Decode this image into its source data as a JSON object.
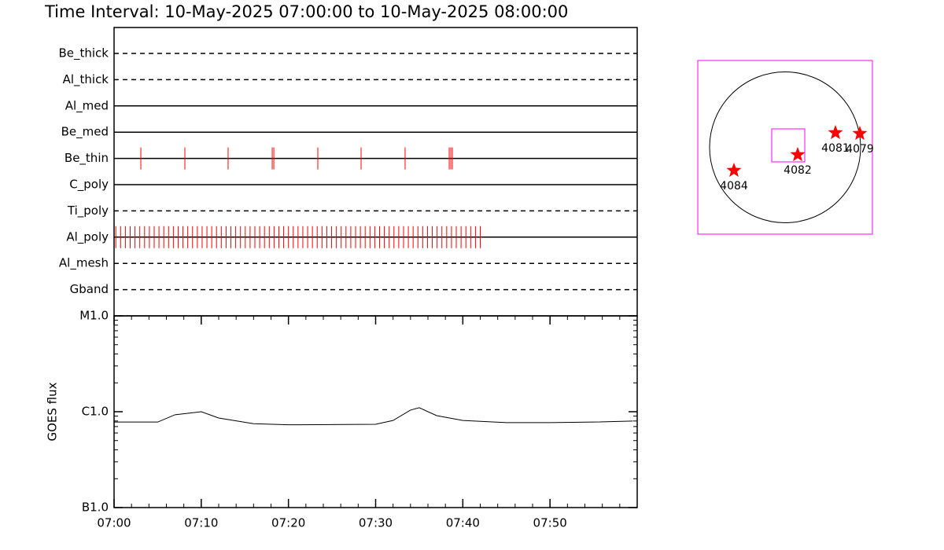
{
  "title": "Time Interval: 10-May-2025 07:00:00 to 10-May-2025 08:00:00",
  "chart_data": [
    {
      "type": "timeline",
      "xlim": [
        0,
        60
      ],
      "color": "#ff0000",
      "rows": [
        {
          "name": "Be_thick",
          "style": "dashed",
          "exposures": []
        },
        {
          "name": "Al_thick",
          "style": "dashed",
          "exposures": []
        },
        {
          "name": "Al_med",
          "style": "solid",
          "exposures": []
        },
        {
          "name": "Be_med",
          "style": "solid",
          "exposures": []
        },
        {
          "name": "Be_thin",
          "style": "solid",
          "exposures": [
            3.07,
            8.12,
            13.08,
            18.14,
            18.32,
            23.37,
            28.33,
            33.38,
            38.44,
            38.62,
            38.8
          ]
        },
        {
          "name": "C_poly",
          "style": "solid",
          "exposures": []
        },
        {
          "name": "Ti_poly",
          "style": "dashed",
          "exposures": []
        },
        {
          "name": "Al_poly",
          "style": "solid",
          "exposures": [
            0.2,
            0.75,
            1.3,
            1.85,
            2.4,
            2.95,
            3.5,
            4.05,
            4.6,
            5.15,
            5.7,
            6.25,
            6.8,
            7.35,
            7.9,
            8.45,
            9,
            9.55,
            10.1,
            10.65,
            11.2,
            11.75,
            12.3,
            12.85,
            13.4,
            13.95,
            14.5,
            15.05,
            15.6,
            16.15,
            16.7,
            17.25,
            17.8,
            18.35,
            18.9,
            19.45,
            20,
            20.55,
            21.1,
            21.65,
            22.2,
            22.75,
            23.3,
            23.85,
            24.4,
            24.95,
            25.5,
            26.05,
            26.6,
            27.15,
            27.7,
            28.25,
            28.8,
            29.35,
            29.9,
            30.45,
            31,
            31.55,
            32.1,
            32.65,
            33.2,
            33.75,
            34.3,
            34.85,
            35.4,
            35.95,
            36.5,
            37.05,
            37.6,
            38.15,
            38.7,
            39.25,
            39.8,
            40.35,
            40.9,
            41.45,
            42
          ]
        },
        {
          "name": "Al_mesh",
          "style": "dashed",
          "exposures": []
        },
        {
          "name": "Gband",
          "style": "dashed",
          "exposures": []
        }
      ]
    },
    {
      "type": "line",
      "y_label": "GOES flux",
      "log_y": true,
      "color": "#000000",
      "xlim": [
        0,
        60
      ],
      "minor_step": 2,
      "xticks": [
        {
          "value": 0,
          "label": "07:00"
        },
        {
          "value": 10,
          "label": "07:10"
        },
        {
          "value": 20,
          "label": "07:20"
        },
        {
          "value": 30,
          "label": "07:30"
        },
        {
          "value": 40,
          "label": "07:40"
        },
        {
          "value": 50,
          "label": "07:50"
        }
      ],
      "ylim": [
        1e-07,
        1e-05
      ],
      "yticks": [
        {
          "value": 1e-05,
          "label": "M1.0"
        },
        {
          "value": 1e-06,
          "label": "C1.0"
        },
        {
          "value": 1e-07,
          "label": "B1.0"
        }
      ],
      "x": [
        0,
        5,
        7,
        10,
        12,
        16,
        20,
        30,
        32,
        34,
        35,
        37,
        40,
        45,
        50,
        55,
        59.5
      ],
      "values": [
        7.8e-07,
        7.8e-07,
        9.3e-07,
        1e-06,
        8.6e-07,
        7.5e-07,
        7.3e-07,
        7.4e-07,
        8.1e-07,
        1.04e-06,
        1.1e-06,
        9.1e-07,
        8.1e-07,
        7.7e-07,
        7.7e-07,
        7.8e-07,
        8e-07
      ]
    },
    {
      "type": "map",
      "xlim": [
        -1110,
        1110
      ],
      "ylim": [
        -1105,
        1105
      ],
      "sun_radius": 960,
      "frame_color": "#ff00ff",
      "marker_color": "#ff0000",
      "fov": {
        "x": 40,
        "y": 25,
        "width": 420,
        "height": 420
      },
      "regions": [
        {
          "name": "4084",
          "x": -650,
          "y": -295
        },
        {
          "name": "4082",
          "x": 160,
          "y": -95
        },
        {
          "name": "4081",
          "x": 640,
          "y": 185
        },
        {
          "name": "4079",
          "x": 950,
          "y": 175
        }
      ]
    }
  ]
}
